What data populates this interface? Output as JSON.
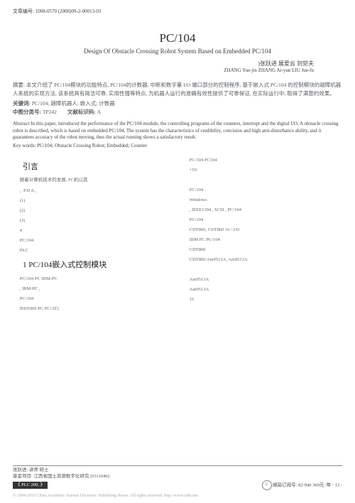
{
  "article_no": "文章编号: 1008-0570 (2008)09-2-00013-03",
  "title_cn": "PC/104",
  "title_en": "Design Of Obstacle Crossing Robot System Based on Embedded PC/104",
  "authors_cn": ")张跃进  展爱云  刘觉夫",
  "authors_en": "ZHANG Yue-jin ZHANG Ai-yun LIU Jue-fu",
  "abstract_cn": "摘要: 本文介绍了 PC/104模块的功能特点, PC/104的计数器, 中断和数字量 I/O 端口部分的控制程序; 基于嵌入式 PC/104 的控制模块的越障机器人系统的实现方法, 该系统具有简洁可靠, 实用性强等特点, 为机器人运行的准确有效性提供了可靠保证, 在实际运行中, 取得了满意的效果。",
  "kw_cn_label": "关键词: ",
  "kw_cn": "PC/104; 越障机器人; 嵌入式; 计数器",
  "class_label": "中图分类号: ",
  "class_no": "TP242",
  "doc_code_label": "文献标识码: ",
  "doc_code": "A",
  "abstract_en": "Abstract In this paper, introduced the performance of the PC/104 module, the controlling programs of the counters, interrupt and the digital I/O, A obstacle crossing robot is described, which is based on embedded PC/104, The system has the characteristics of credibility, concision and high anti-disturbance ability, and it guarantees accuracy of the robot moving, thus the actual running shows a satisfactory result.",
  "kw_en_label": "Key words: ",
  "kw_en": "PC/104; Obstacle Crossing Robot; Embedded; Counter",
  "sec0": "引言",
  "sec1": "1 PC/104嵌入式控制模块",
  "col_left": [
    "随着计算机技术的发展, PC机以其",
    ", PDA,",
    "(1)",
    "(2)",
    "(3)",
    "4",
    "PC/104",
    "PLC",
    ""
  ],
  "col_right": [
    "PC/104 PC104",
    "+5V",
    "PC/104",
    "Windows",
    ", IEEE1394 , SCSI , PC/104",
    "PC/104",
    "CDT800, CDT800 16 / I/O",
    "IBM PC PC/104",
    "CDT800",
    "CDT800 Am9513A, Am9513A",
    "Am9513A",
    "Am9513A",
    "16"
  ],
  "left_bottom": [
    "PC/104 PC IBM-PC",
    ", IBM-PC ,",
    "PC/104",
    "IEEE966 PC PC/AT)"
  ],
  "footer1": "张跃进: 讲师 硕士",
  "footer2": "基金项目: 江西省国土资源数字化研究 (0311046)",
  "plc_tag": "《 PLC         200, 》",
  "sub_info": "邮局订阅号: 82-946 360元 /年  - 13 -",
  "cnki_label": "中国学术期刊",
  "copyright": "© 1994-2010 China Academic Journal Electronic Publishing House. All rights reserved.   http://www.cnki.net"
}
